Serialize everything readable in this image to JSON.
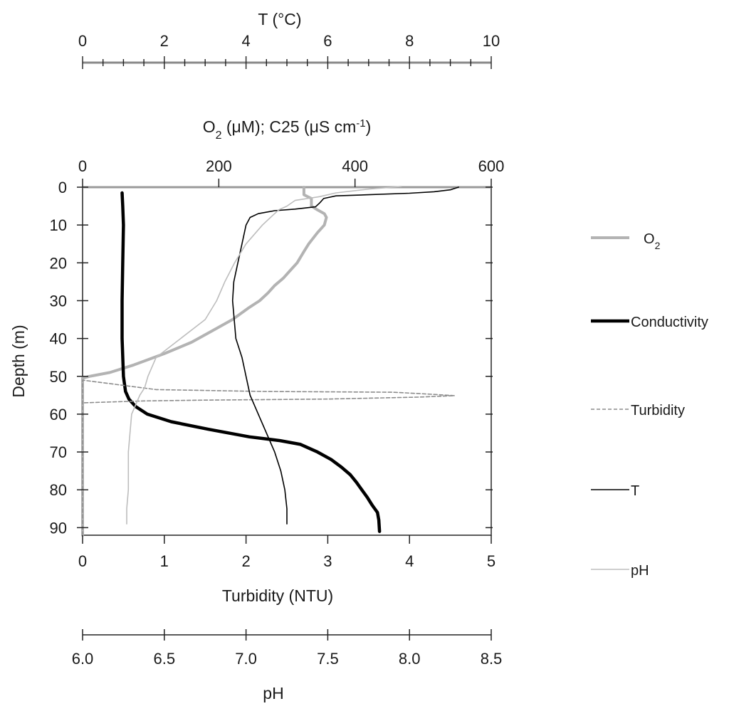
{
  "chart_data": {
    "type": "line",
    "axes": {
      "depth": {
        "title": "Depth (m)",
        "range": [
          0,
          92
        ],
        "inverted": true,
        "ticks": [
          0,
          10,
          20,
          30,
          40,
          50,
          60,
          70,
          80,
          90
        ],
        "tick_labels": [
          "0",
          "10",
          "20",
          "30",
          "40",
          "50",
          "60",
          "70",
          "80",
          "90"
        ]
      },
      "temperature": {
        "title": "T (°C)",
        "range": [
          0,
          10
        ],
        "ticks": [
          0,
          2,
          4,
          6,
          8,
          10
        ],
        "tick_labels": [
          "0",
          "2",
          "4",
          "6",
          "8",
          "10"
        ],
        "minor_step": 0.5
      },
      "o2_conductivity": {
        "title_main": "O",
        "title_sub": "2",
        "title_rest": " (μM); C25 (μS cm",
        "title_sup": "-1",
        "title_end": ")",
        "range": [
          0,
          600
        ],
        "ticks": [
          0,
          200,
          400,
          600
        ],
        "tick_labels": [
          "0",
          "200",
          "400",
          "600"
        ]
      },
      "turbidity": {
        "title": "Turbidity  (NTU)",
        "range": [
          0,
          5
        ],
        "ticks": [
          0,
          1,
          2,
          3,
          4,
          5
        ],
        "tick_labels": [
          "0",
          "1",
          "2",
          "3",
          "4",
          "5"
        ]
      },
      "ph": {
        "title": "pH",
        "range": [
          6.0,
          8.5
        ],
        "ticks": [
          6.0,
          6.5,
          7.0,
          7.5,
          8.0,
          8.5
        ],
        "tick_labels": [
          "6.0",
          "6.5",
          "7.0",
          "7.5",
          "8.0",
          "8.5"
        ]
      }
    },
    "series": [
      {
        "name": "O2",
        "label_main": "O",
        "label_sub": "2",
        "axis": "o2_conductivity",
        "color": "#b3b3b3",
        "style": "thick",
        "points": [
          [
            325,
            0
          ],
          [
            325,
            2
          ],
          [
            336,
            3
          ],
          [
            336,
            5
          ],
          [
            345,
            6
          ],
          [
            355,
            7
          ],
          [
            358,
            8
          ],
          [
            355,
            10
          ],
          [
            345,
            12
          ],
          [
            332,
            15
          ],
          [
            325,
            17
          ],
          [
            315,
            20
          ],
          [
            305,
            22
          ],
          [
            295,
            24
          ],
          [
            282,
            26
          ],
          [
            272,
            28
          ],
          [
            260,
            30
          ],
          [
            243,
            32
          ],
          [
            220,
            35
          ],
          [
            190,
            38
          ],
          [
            160,
            41
          ],
          [
            120,
            44
          ],
          [
            75,
            47
          ],
          [
            40,
            49
          ],
          [
            10,
            50
          ],
          [
            0,
            50.5
          ],
          [
            0,
            92
          ]
        ]
      },
      {
        "name": "Conductivity",
        "axis": "o2_conductivity",
        "color": "#000000",
        "style": "bold",
        "points": [
          [
            58,
            1.5
          ],
          [
            59,
            5
          ],
          [
            60,
            10
          ],
          [
            59,
            20
          ],
          [
            58,
            30
          ],
          [
            58,
            40
          ],
          [
            60,
            50
          ],
          [
            63,
            54
          ],
          [
            68,
            56
          ],
          [
            78,
            58
          ],
          [
            95,
            60
          ],
          [
            130,
            62
          ],
          [
            185,
            64
          ],
          [
            245,
            66
          ],
          [
            290,
            67
          ],
          [
            320,
            68
          ],
          [
            345,
            70
          ],
          [
            365,
            72
          ],
          [
            380,
            74
          ],
          [
            393,
            76
          ],
          [
            402,
            78
          ],
          [
            410,
            80
          ],
          [
            418,
            82
          ],
          [
            425,
            84
          ],
          [
            433,
            86
          ],
          [
            435,
            88
          ],
          [
            436,
            91
          ]
        ]
      },
      {
        "name": "Turbidity",
        "axis": "turbidity",
        "color": "#8c8c8c",
        "style": "dashed",
        "points": [
          [
            0,
            92
          ],
          [
            0,
            51
          ],
          [
            0.9,
            53.5
          ],
          [
            2.2,
            54
          ],
          [
            3.8,
            54.2
          ],
          [
            4.15,
            54.6
          ],
          [
            4.55,
            55.1
          ],
          [
            4.1,
            55.5
          ],
          [
            3.0,
            56
          ],
          [
            1.5,
            56.3
          ],
          [
            0.75,
            56.5
          ],
          [
            0,
            57
          ]
        ]
      },
      {
        "name": "T",
        "axis": "temperature",
        "color": "#000000",
        "style": "thin",
        "points": [
          [
            9.2,
            0
          ],
          [
            9.0,
            0.7
          ],
          [
            8.6,
            1.2
          ],
          [
            8.0,
            1.6
          ],
          [
            7.0,
            2.0
          ],
          [
            6.2,
            2.3
          ],
          [
            5.9,
            3.0
          ],
          [
            5.8,
            4.2
          ],
          [
            5.7,
            5.2
          ],
          [
            5.2,
            5.8
          ],
          [
            4.7,
            6.2
          ],
          [
            4.3,
            7.0
          ],
          [
            4.1,
            8.0
          ],
          [
            4.0,
            10
          ],
          [
            3.9,
            15
          ],
          [
            3.8,
            20
          ],
          [
            3.7,
            25
          ],
          [
            3.67,
            30
          ],
          [
            3.75,
            40
          ],
          [
            3.9,
            45
          ],
          [
            4.0,
            50
          ],
          [
            4.1,
            55
          ],
          [
            4.3,
            60
          ],
          [
            4.5,
            65
          ],
          [
            4.7,
            70
          ],
          [
            4.85,
            75
          ],
          [
            4.95,
            80
          ],
          [
            5.0,
            85
          ],
          [
            5.0,
            89
          ]
        ]
      },
      {
        "name": "pH",
        "axis": "ph",
        "color": "#bdbdbd",
        "style": "thin",
        "points": [
          [
            7.95,
            -0.2
          ],
          [
            7.75,
            0.5
          ],
          [
            7.55,
            1.5
          ],
          [
            7.45,
            2.5
          ],
          [
            7.3,
            3.5
          ],
          [
            7.25,
            5.0
          ],
          [
            7.2,
            6.0
          ],
          [
            7.15,
            8.0
          ],
          [
            7.1,
            10
          ],
          [
            7.0,
            15
          ],
          [
            6.93,
            20
          ],
          [
            6.87,
            25
          ],
          [
            6.82,
            30
          ],
          [
            6.75,
            35
          ],
          [
            6.6,
            40
          ],
          [
            6.45,
            45
          ],
          [
            6.4,
            50
          ],
          [
            6.38,
            53
          ],
          [
            6.35,
            55
          ],
          [
            6.33,
            57
          ],
          [
            6.3,
            60
          ],
          [
            6.29,
            65
          ],
          [
            6.28,
            70
          ],
          [
            6.28,
            75
          ],
          [
            6.28,
            80
          ],
          [
            6.27,
            85
          ],
          [
            6.27,
            89
          ]
        ]
      }
    ],
    "legend": {
      "placement": "right",
      "items": [
        "O2",
        "Conductivity",
        "Turbidity",
        "T",
        "pH"
      ]
    }
  }
}
